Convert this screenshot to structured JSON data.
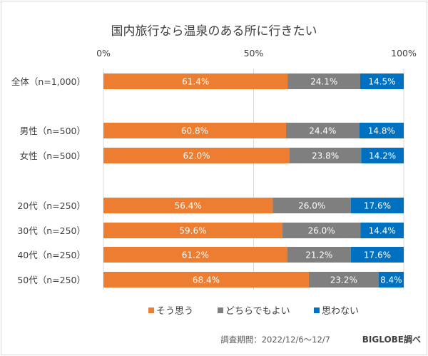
{
  "chart_data": {
    "type": "bar",
    "orientation": "horizontal",
    "stacked": true,
    "title": "国内旅行なら温泉のある所に行きたい",
    "categories": [
      "全体（n=1,000）",
      "男性（n=500）",
      "女性（n=500）",
      "20代（n=250）",
      "30代（n=250）",
      "40代（n=250）",
      "50代（n=250）"
    ],
    "series": [
      {
        "name": "そう思う",
        "color": "#ed7d31",
        "values": [
          61.4,
          60.8,
          62.0,
          56.4,
          59.6,
          61.2,
          68.4
        ],
        "labels": [
          "61.4%",
          "60.8%",
          "62.0%",
          "56.4%",
          "59.6%",
          "61.2%",
          "68.4%"
        ]
      },
      {
        "name": "どちらでもよい",
        "color": "#7f7f7f",
        "values": [
          24.1,
          24.4,
          23.8,
          26.0,
          26.0,
          21.2,
          23.2
        ],
        "labels": [
          "24.1%",
          "24.4%",
          "23.8%",
          "26.0%",
          "26.0%",
          "21.2%",
          "23.2%"
        ]
      },
      {
        "name": "思わない",
        "color": "#0070c0",
        "values": [
          14.5,
          14.8,
          14.2,
          17.6,
          14.4,
          17.6,
          8.4
        ],
        "labels": [
          "14.5%",
          "14.8%",
          "14.2%",
          "17.6%",
          "14.4%",
          "17.6%",
          "8.4%"
        ]
      }
    ],
    "xlim": [
      0,
      100
    ],
    "xticks": [
      "0%",
      "50%",
      "100%"
    ],
    "grid": true,
    "legend": "bottom",
    "xlabel": "",
    "ylabel": ""
  },
  "footer": {
    "period": "調査期間：2022/12/6～12/7",
    "source": "BIGLOBE調べ"
  }
}
